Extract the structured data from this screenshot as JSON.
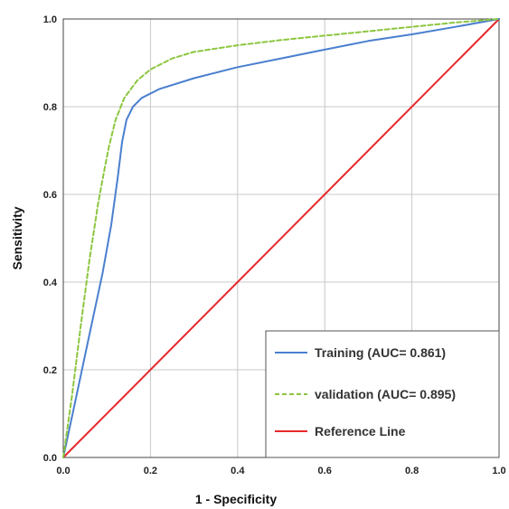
{
  "chart_data": {
    "type": "line",
    "xlabel": "1 - Specificity",
    "ylabel": "Sensitivity",
    "xlim": [
      0,
      1
    ],
    "ylim": [
      0,
      1
    ],
    "x_ticks": [
      "0.0",
      "0.2",
      "0.4",
      "0.6",
      "0.8",
      "1.0"
    ],
    "y_ticks": [
      "0.0",
      "0.2",
      "0.4",
      "0.6",
      "0.8",
      "1.0"
    ],
    "grid": true,
    "legend_position": "bottom-right",
    "series": [
      {
        "name": "Training (AUC= 0.861)",
        "color": "#4a7fcf",
        "style": "solid",
        "x": [
          0,
          0.03,
          0.06,
          0.09,
          0.11,
          0.125,
          0.135,
          0.145,
          0.16,
          0.18,
          0.22,
          0.3,
          0.4,
          0.5,
          0.6,
          0.7,
          0.8,
          0.9,
          1.0
        ],
        "y": [
          0,
          0.14,
          0.28,
          0.42,
          0.53,
          0.64,
          0.72,
          0.77,
          0.8,
          0.82,
          0.84,
          0.865,
          0.89,
          0.91,
          0.93,
          0.95,
          0.965,
          0.982,
          1.0
        ]
      },
      {
        "name": "validation (AUC= 0.895)",
        "color": "#8cc63f",
        "style": "dashed",
        "x": [
          0,
          0.02,
          0.04,
          0.06,
          0.08,
          0.095,
          0.105,
          0.12,
          0.14,
          0.17,
          0.2,
          0.25,
          0.3,
          0.4,
          0.5,
          0.6,
          0.7,
          0.8,
          0.9,
          1.0
        ],
        "y": [
          0,
          0.14,
          0.3,
          0.45,
          0.58,
          0.66,
          0.71,
          0.77,
          0.82,
          0.86,
          0.885,
          0.91,
          0.925,
          0.94,
          0.952,
          0.962,
          0.972,
          0.982,
          0.992,
          1.0
        ]
      },
      {
        "name": "Reference Line",
        "color": "#e8282b",
        "style": "solid",
        "x": [
          0,
          1
        ],
        "y": [
          0,
          1
        ]
      }
    ]
  }
}
